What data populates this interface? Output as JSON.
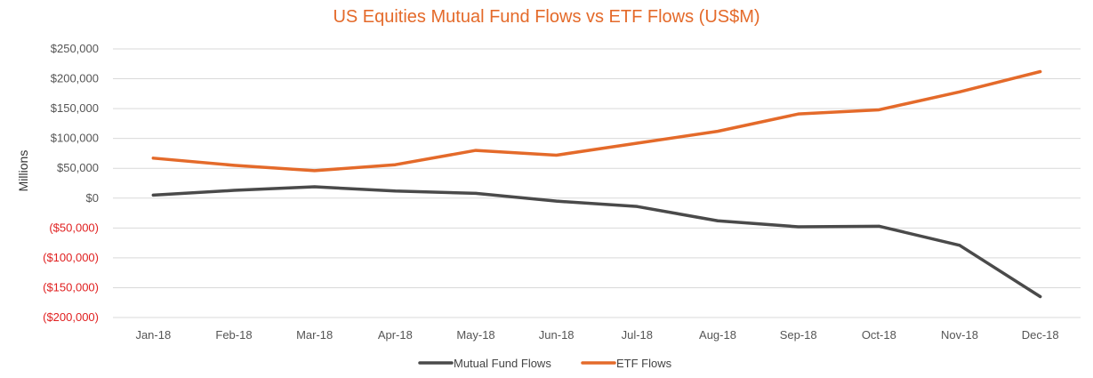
{
  "chart_data": {
    "type": "line",
    "title": "US Equities Mutual Fund Flows vs ETF Flows (US$M)",
    "xlabel": "",
    "ylabel": "Millions",
    "ylim": [
      -200000,
      250000
    ],
    "yticks": [
      250000,
      200000,
      150000,
      100000,
      50000,
      0,
      -50000,
      -100000,
      -150000,
      -200000
    ],
    "ytick_labels": [
      "$250,000",
      "$200,000",
      "$150,000",
      "$100,000",
      "$50,000",
      "$0",
      "($50,000)",
      "($100,000)",
      "($150,000)",
      "($200,000)"
    ],
    "categories": [
      "Jan-18",
      "Feb-18",
      "Mar-18",
      "Apr-18",
      "May-18",
      "Jun-18",
      "Jul-18",
      "Aug-18",
      "Sep-18",
      "Oct-18",
      "Nov-18",
      "Dec-18"
    ],
    "series": [
      {
        "name": "Mutual Fund Flows",
        "color": "#4A4A4A",
        "values": [
          5000,
          13000,
          19000,
          12000,
          8000,
          -5000,
          -14000,
          -38000,
          -48000,
          -47000,
          -79000,
          -165000
        ]
      },
      {
        "name": "ETF Flows",
        "color": "#E46A2A",
        "values": [
          67000,
          55000,
          46000,
          56000,
          80000,
          72000,
          92000,
          112000,
          141000,
          148000,
          178000,
          212000
        ]
      }
    ],
    "grid": true,
    "legend": "bottom-center",
    "negative_tick_color": "#E02020"
  }
}
